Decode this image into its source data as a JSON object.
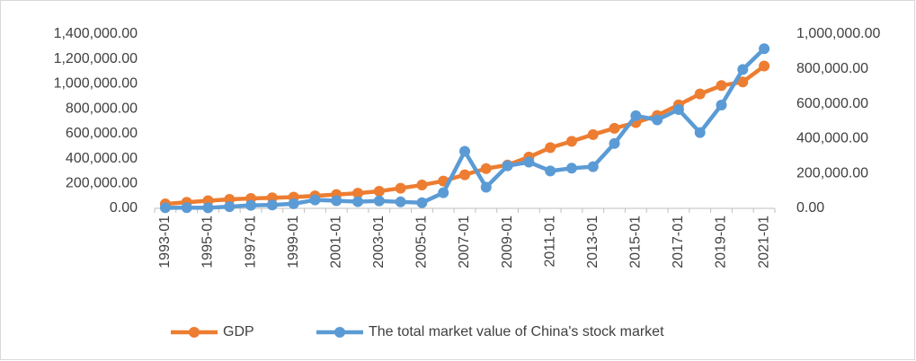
{
  "chart_data": {
    "type": "line",
    "categories": [
      "1993-01",
      null,
      "1995-01",
      null,
      "1997-01",
      null,
      "1999-01",
      null,
      "2001-01",
      null,
      "2003-01",
      null,
      "2005-01",
      null,
      "2007-01",
      null,
      "2009-01",
      null,
      "2011-01",
      null,
      "2013-01",
      null,
      "2015-01",
      null,
      "2017-01",
      null,
      "2019-01",
      null,
      "2021-01"
    ],
    "series": [
      {
        "name": "GDP",
        "color": "#ed7d31",
        "values": [
          35673,
          48637,
          61340,
          71814,
          79715,
          85196,
          90564,
          100280,
          110863,
          121717,
          137422,
          161840,
          187319,
          219439,
          270092,
          319245,
          348518,
          412119,
          487940,
          538580,
          592963,
          643563,
          688858,
          746395,
          832036,
          919281,
          986515,
          1015986,
          1143670
        ]
      },
      {
        "name": "The total market value of China's stock market",
        "color": "#5b9bd5",
        "axis": "y2",
        "values": [
          3531,
          3690,
          3474,
          9842,
          17529,
          19506,
          26471,
          48091,
          43522,
          38329,
          42458,
          37056,
          32430,
          89404,
          327141,
          121366,
          243939,
          265423,
          214758,
          230358,
          239077,
          372547,
          531463,
          507686,
          567086,
          434924,
          592935,
          797238,
          916088
        ]
      }
    ],
    "ylim": [
      0,
      1400000
    ],
    "yticks": [
      {
        "value": 0,
        "label": "0.00"
      },
      {
        "value": 200000,
        "label": "200,000.00"
      },
      {
        "value": 400000,
        "label": "400,000.00"
      },
      {
        "value": 600000,
        "label": "600,000.00"
      },
      {
        "value": 800000,
        "label": "800,000.00"
      },
      {
        "value": 1000000,
        "label": "1,000,000.00"
      },
      {
        "value": 1200000,
        "label": "1,200,000.00"
      },
      {
        "value": 1400000,
        "label": "1,400,000.00"
      }
    ],
    "y2lim": [
      0,
      1000000
    ],
    "y2ticks": [
      {
        "value": 0,
        "label": "0.00"
      },
      {
        "value": 200000,
        "label": "200,000.00"
      },
      {
        "value": 400000,
        "label": "400,000.00"
      },
      {
        "value": 600000,
        "label": "600,000.00"
      },
      {
        "value": 800000,
        "label": "800,000.00"
      },
      {
        "value": 1000000,
        "label": "1,000,000.00"
      }
    ],
    "legend": "bottom"
  }
}
